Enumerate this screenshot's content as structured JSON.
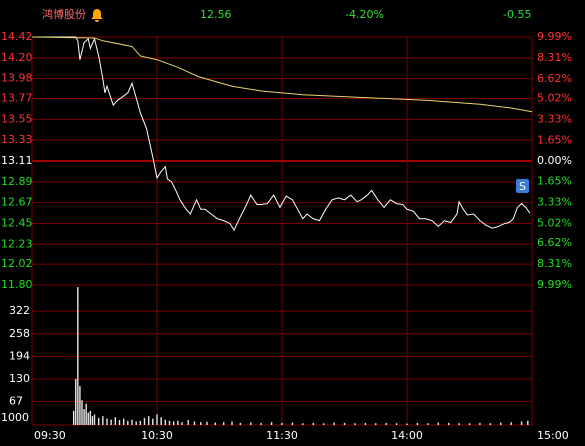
{
  "header": {
    "name": "鸿博股份",
    "price": "12.56",
    "change_pct": "-4.20%",
    "change": "-0.55"
  },
  "chart_data": [
    {
      "type": "line",
      "marker": "S",
      "xlim": [
        0,
        240
      ],
      "xticks": [
        {
          "value": 0,
          "label": "09:30"
        },
        {
          "value": 60,
          "label": "10:30"
        },
        {
          "value": 120,
          "label": "11:30"
        },
        {
          "value": 180,
          "label": "14:00"
        },
        {
          "value": 240,
          "label": "15:00"
        }
      ],
      "ylim": [
        11.8,
        14.42
      ],
      "yticks": [
        14.42,
        {
          "value": 14.2,
          "label": "14.20"
        },
        13.98,
        13.77,
        13.55,
        13.33,
        13.11,
        12.89,
        12.67,
        12.45,
        12.23,
        12.02,
        {
          "value": 11.8,
          "label": "11.80"
        }
      ],
      "y2lim": [
        -9.99,
        9.99
      ],
      "y2ticks": [
        {
          "value": 9.99,
          "label": "9.99%"
        },
        {
          "value": 8.31,
          "label": "8.31%"
        },
        {
          "value": 6.62,
          "label": "6.62%"
        },
        {
          "value": 5.02,
          "label": "5.02%"
        },
        {
          "value": 3.33,
          "label": "3.33%"
        },
        {
          "value": 1.65,
          "label": "1.65%"
        },
        {
          "value": 0,
          "label": "0.00%"
        },
        {
          "value": -1.65,
          "label": "1.65%"
        },
        {
          "value": -3.33,
          "label": "3.33%"
        },
        {
          "value": -5.02,
          "label": "5.02%"
        },
        {
          "value": -6.62,
          "label": "6.62%"
        },
        {
          "value": -8.31,
          "label": "8.31%"
        },
        {
          "value": -9.99,
          "label": "9.99%"
        }
      ],
      "grid": true,
      "series": [
        {
          "color": "#ffffff",
          "x": [
            0,
            21,
            22,
            23,
            25,
            27,
            28,
            30,
            32,
            34,
            35,
            36,
            39,
            41,
            43,
            46,
            48,
            50,
            52,
            55,
            58,
            60,
            62,
            64,
            65,
            67,
            69,
            71,
            74,
            76,
            79,
            81,
            83,
            86,
            89,
            92,
            95,
            97,
            100,
            103,
            105,
            108,
            110,
            113,
            116,
            119,
            122,
            125,
            128,
            130,
            132,
            135,
            138,
            141,
            144,
            147,
            150,
            153,
            156,
            158,
            161,
            163,
            166,
            169,
            172,
            175,
            178,
            180,
            183,
            186,
            189,
            192,
            195,
            198,
            201,
            204,
            205,
            207,
            209,
            212,
            215,
            218,
            221,
            224,
            227,
            229,
            231,
            233,
            235,
            237,
            239
          ],
          "values": [
            14.42,
            14.42,
            14.38,
            14.18,
            14.36,
            14.4,
            14.3,
            14.4,
            14.22,
            13.98,
            13.83,
            13.9,
            13.7,
            13.75,
            13.78,
            13.83,
            13.93,
            13.78,
            13.62,
            13.45,
            13.15,
            12.93,
            13.0,
            13.05,
            12.92,
            12.89,
            12.8,
            12.7,
            12.6,
            12.55,
            12.7,
            12.6,
            12.6,
            12.55,
            12.5,
            12.48,
            12.45,
            12.38,
            12.52,
            12.65,
            12.75,
            12.65,
            12.65,
            12.66,
            12.75,
            12.62,
            12.74,
            12.7,
            12.58,
            12.5,
            12.55,
            12.5,
            12.48,
            12.6,
            12.7,
            12.72,
            12.7,
            12.75,
            12.68,
            12.7,
            12.75,
            12.8,
            12.7,
            12.62,
            12.7,
            12.66,
            12.65,
            12.6,
            12.58,
            12.5,
            12.5,
            12.48,
            12.42,
            12.48,
            12.46,
            12.55,
            12.68,
            12.6,
            12.54,
            12.55,
            12.48,
            12.43,
            12.4,
            12.42,
            12.45,
            12.46,
            12.5,
            12.62,
            12.66,
            12.62,
            12.56
          ]
        },
        {
          "color": "#e6d46a",
          "x": [
            0,
            30,
            34,
            48,
            52,
            60,
            70,
            80,
            96,
            110,
            130,
            160,
            190,
            215,
            230,
            240
          ],
          "values": [
            14.42,
            14.41,
            14.38,
            14.32,
            14.22,
            14.18,
            14.1,
            14.0,
            13.9,
            13.85,
            13.81,
            13.78,
            13.75,
            13.71,
            13.67,
            13.63
          ]
        }
      ]
    },
    {
      "type": "bar",
      "ylabel": "1000",
      "color": "#e8e8e8",
      "xlim": [
        0,
        240
      ],
      "ylim": [
        0,
        396
      ],
      "yticks": [
        67,
        130,
        194,
        258,
        322
      ],
      "x": [
        20,
        21,
        22,
        23,
        24,
        25,
        26,
        27,
        28,
        29,
        30,
        32,
        34,
        36,
        38,
        40,
        42,
        44,
        46,
        48,
        50,
        52,
        54,
        56,
        58,
        60,
        62,
        64,
        66,
        68,
        70,
        72,
        75,
        78,
        81,
        84,
        88,
        92,
        96,
        100,
        105,
        110,
        115,
        120,
        125,
        130,
        135,
        140,
        145,
        150,
        155,
        160,
        165,
        170,
        175,
        180,
        185,
        190,
        195,
        200,
        205,
        210,
        215,
        220,
        225,
        230,
        235,
        238
      ],
      "values": [
        40,
        130,
        390,
        110,
        70,
        45,
        60,
        35,
        40,
        25,
        30,
        20,
        25,
        18,
        15,
        22,
        14,
        18,
        12,
        15,
        10,
        12,
        20,
        25,
        18,
        30,
        22,
        15,
        12,
        10,
        12,
        8,
        14,
        10,
        8,
        9,
        7,
        8,
        10,
        6,
        7,
        6,
        8,
        6,
        7,
        5,
        6,
        5,
        7,
        6,
        5,
        6,
        5,
        6,
        5,
        4,
        6,
        5,
        7,
        6,
        5,
        5,
        6,
        5,
        7,
        8,
        10,
        12
      ]
    }
  ]
}
